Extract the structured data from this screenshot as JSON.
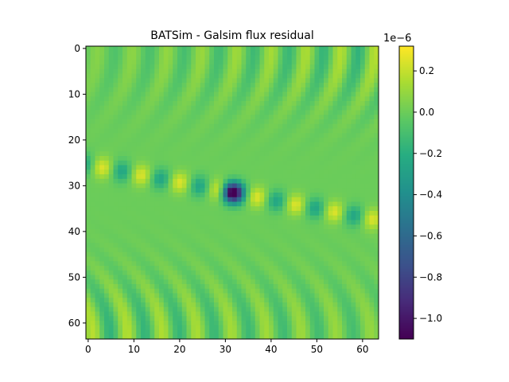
{
  "chart_data": {
    "type": "heatmap",
    "title": "BATSim - Galsim flux residual",
    "xlabel": "",
    "ylabel": "",
    "grid": false,
    "image_size": [
      64,
      64
    ],
    "x_ticks": [
      0,
      10,
      20,
      30,
      40,
      50,
      60
    ],
    "y_ticks": [
      0,
      10,
      20,
      30,
      40,
      50,
      60
    ],
    "xlim": [
      -0.5,
      63.5
    ],
    "ylim": [
      63.5,
      -0.5
    ],
    "colormap": "viridis",
    "value_range": [
      -1.1e-06,
      3.2e-07
    ],
    "colorbar": {
      "ticks": [
        0.2,
        0.0,
        -0.2,
        -0.4,
        -0.6,
        -0.8,
        -1.0
      ],
      "tick_labels": [
        "0.2",
        "0.0",
        "−0.2",
        "−0.4",
        "−0.6",
        "−0.8",
        "−1.0"
      ],
      "offset_text": "1e−6",
      "range": [
        -1.1,
        0.32
      ]
    },
    "features": {
      "central_dip": {
        "x": 31.5,
        "y": 31.5,
        "value": -1.1e-06
      },
      "stripe": {
        "x_start": 0,
        "y_start": 25.5,
        "x_end": 63,
        "y_end": 37.5,
        "period": 8.6,
        "amplitude": 2.5e-07
      },
      "top_arcs": {
        "center_y": 0,
        "amplitude": 1.8e-07
      },
      "bottom_arcs": {
        "center_y": 63,
        "amplitude": 1.8e-07
      }
    }
  }
}
